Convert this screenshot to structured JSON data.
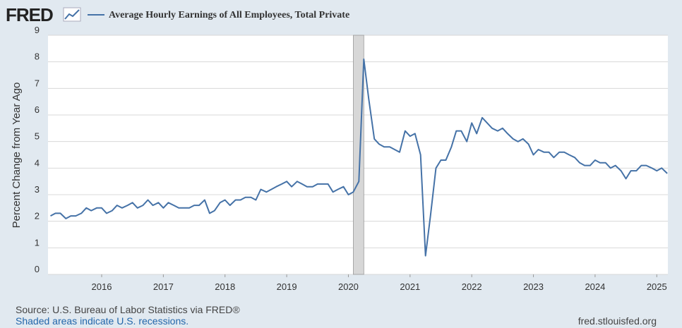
{
  "chart_data": {
    "type": "line",
    "logo": "FRED",
    "title": "Average Hourly Earnings of All Employees, Total Private",
    "ylabel": "Percent Change from Year Ago",
    "source": "Source: U.S. Bureau of Labor Statistics via FRED®",
    "note": "Shaded areas indicate U.S. recessions.",
    "credit": "fred.stlouisfed.org",
    "xlim": [
      2015.13,
      2025.18
    ],
    "xticks": [
      2016,
      2017,
      2018,
      2019,
      2020,
      2021,
      2022,
      2023,
      2024,
      2025
    ],
    "ylim": [
      0,
      9
    ],
    "yticks": [
      0,
      1,
      2,
      3,
      4,
      5,
      6,
      7,
      8,
      9
    ],
    "grid": true,
    "recessions": [
      [
        2020.08,
        2020.25
      ]
    ],
    "x": [
      2015.17,
      2015.25,
      2015.33,
      2015.42,
      2015.5,
      2015.58,
      2015.67,
      2015.75,
      2015.83,
      2015.92,
      2016,
      2016.08,
      2016.17,
      2016.25,
      2016.33,
      2016.42,
      2016.5,
      2016.58,
      2016.67,
      2016.75,
      2016.83,
      2016.92,
      2017,
      2017.08,
      2017.17,
      2017.25,
      2017.33,
      2017.42,
      2017.5,
      2017.58,
      2017.67,
      2017.75,
      2017.83,
      2017.92,
      2018,
      2018.08,
      2018.17,
      2018.25,
      2018.33,
      2018.42,
      2018.5,
      2018.58,
      2018.67,
      2018.75,
      2018.83,
      2018.92,
      2019,
      2019.08,
      2019.17,
      2019.25,
      2019.33,
      2019.42,
      2019.5,
      2019.58,
      2019.67,
      2019.75,
      2019.83,
      2019.92,
      2020,
      2020.08,
      2020.17,
      2020.25,
      2020.33,
      2020.42,
      2020.5,
      2020.58,
      2020.67,
      2020.75,
      2020.83,
      2020.92,
      2021,
      2021.08,
      2021.17,
      2021.25,
      2021.33,
      2021.42,
      2021.5,
      2021.58,
      2021.67,
      2021.75,
      2021.83,
      2021.92,
      2022,
      2022.08,
      2022.17,
      2022.25,
      2022.33,
      2022.42,
      2022.5,
      2022.58,
      2022.67,
      2022.75,
      2022.83,
      2022.92,
      2023,
      2023.08,
      2023.17,
      2023.25,
      2023.33,
      2023.42,
      2023.5,
      2023.58,
      2023.67,
      2023.75,
      2023.83,
      2023.92,
      2024,
      2024.08,
      2024.17,
      2024.25,
      2024.33,
      2024.42,
      2024.5,
      2024.58,
      2024.67,
      2024.75,
      2024.83,
      2024.92,
      2025,
      2025.08,
      2025.17
    ],
    "series": [
      {
        "name": "Average Hourly Earnings of All Employees, Total Private",
        "color": "#4572a7",
        "values": [
          2.2,
          2.3,
          2.3,
          2.1,
          2.2,
          2.2,
          2.3,
          2.5,
          2.4,
          2.5,
          2.5,
          2.3,
          2.4,
          2.6,
          2.5,
          2.6,
          2.7,
          2.5,
          2.6,
          2.8,
          2.6,
          2.7,
          2.5,
          2.7,
          2.6,
          2.5,
          2.5,
          2.5,
          2.6,
          2.6,
          2.8,
          2.3,
          2.4,
          2.7,
          2.8,
          2.6,
          2.8,
          2.8,
          2.9,
          2.9,
          2.8,
          3.2,
          3.1,
          3.2,
          3.3,
          3.4,
          3.5,
          3.3,
          3.5,
          3.4,
          3.3,
          3.3,
          3.4,
          3.4,
          3.4,
          3.1,
          3.2,
          3.3,
          3.0,
          3.1,
          3.5,
          8.1,
          6.6,
          5.1,
          4.9,
          4.8,
          4.8,
          4.7,
          4.6,
          5.4,
          5.2,
          5.3,
          4.5,
          0.7,
          2.2,
          4.0,
          4.3,
          4.3,
          4.8,
          5.4,
          5.4,
          5.0,
          5.7,
          5.3,
          5.9,
          5.7,
          5.5,
          5.4,
          5.5,
          5.3,
          5.1,
          5.0,
          5.1,
          4.9,
          4.5,
          4.7,
          4.6,
          4.6,
          4.4,
          4.6,
          4.6,
          4.5,
          4.4,
          4.2,
          4.1,
          4.1,
          4.3,
          4.2,
          4.2,
          4.0,
          4.1,
          3.9,
          3.6,
          3.9,
          3.9,
          4.1,
          4.1,
          4.0,
          3.9,
          4.0,
          3.8
        ]
      }
    ]
  }
}
